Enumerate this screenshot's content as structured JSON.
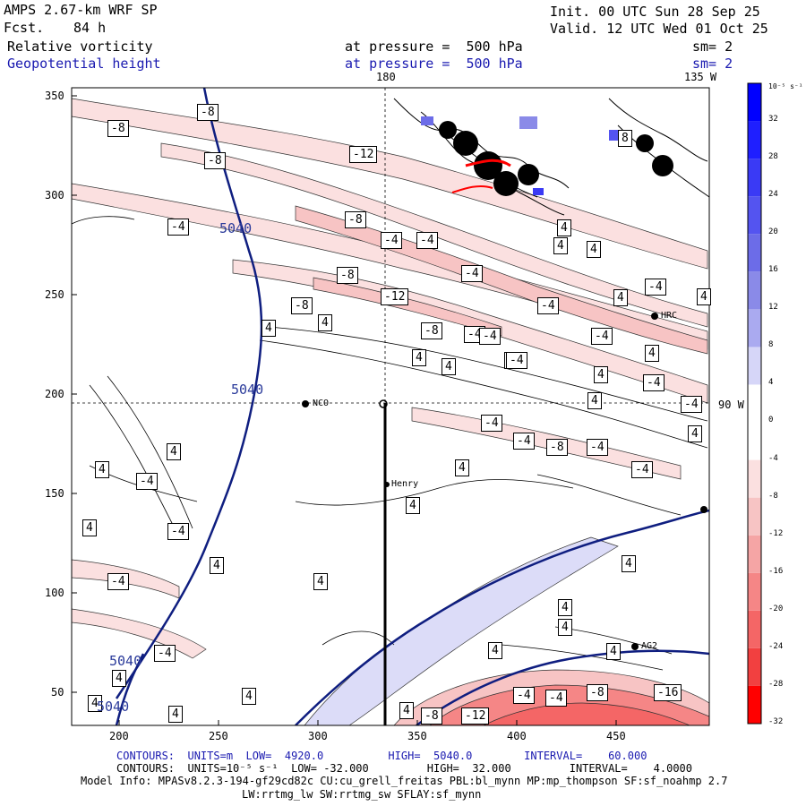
{
  "header": {
    "model": "AMPS 2.67-km WRF SP",
    "fcst_label": "Fcst.",
    "fcst_value": "84 h",
    "init": "Init. 00 UTC Sun 28 Sep 25",
    "valid": "Valid. 12 UTC Wed 01 Oct 25",
    "field1_name": "Relative vorticity",
    "field1_level": "at pressure =  500 hPa",
    "field1_sm": "sm= 2",
    "field2_name": "Geopotential height",
    "field2_level": "at pressure =  500 hPa",
    "field2_sm": "sm= 2"
  },
  "map": {
    "lon_180": "180",
    "lon_135w": "135 W",
    "lat_90w": "90 W",
    "stations": [
      {
        "name": "NCO",
        "marker": "dot"
      },
      {
        "name": "Henry",
        "marker": "dot"
      },
      {
        "name": "HRC",
        "marker": "dot"
      },
      {
        "name": "AG2",
        "marker": "dot"
      }
    ],
    "y_ticks": [
      "350",
      "300",
      "250",
      "200",
      "150",
      "100",
      "50"
    ],
    "x_ticks": [
      "200",
      "250",
      "300",
      "350",
      "400",
      "450"
    ]
  },
  "height_labels": [
    "5040",
    "5040",
    "5040",
    "5040"
  ],
  "vort_labels": [
    "-8",
    "-8",
    "-4",
    "-8",
    "-4",
    "-8",
    "-12",
    "-4",
    "-8",
    "-4",
    "-8",
    "-4",
    "-4",
    "-8",
    "-4",
    "-4",
    "-4",
    "-4",
    "-4",
    "-4",
    "-4",
    "-8",
    "-4",
    "-4",
    "-4",
    "-4",
    "-4",
    "-4",
    "-4",
    "-8",
    "-4",
    "-4",
    "-8",
    "-16",
    "-12",
    "-8",
    "-12",
    "4",
    "4",
    "4",
    "4",
    "4",
    "4",
    "4",
    "4",
    "4",
    "4",
    "4",
    "4",
    "4",
    "4",
    "4",
    "4",
    "4",
    "4",
    "4",
    "4",
    "4",
    "4",
    "4",
    "4",
    "4",
    "4",
    "4",
    "4",
    "4",
    "4",
    "8",
    "8",
    "4"
  ],
  "colorbar": {
    "units": "10⁻⁵ s⁻¹",
    "labels": [
      "32",
      "28",
      "24",
      "20",
      "16",
      "12",
      "8",
      "4",
      "0",
      "-4",
      "-8",
      "-12",
      "-16",
      "-20",
      "-24",
      "-28",
      "-32"
    ],
    "colors": [
      "#0000ff",
      "#1f1fff",
      "#3a3af5",
      "#5454f0",
      "#6c6ce8",
      "#8a8ae8",
      "#aaaaf0",
      "#d6d6f8",
      "#ffffff",
      "#ffffff",
      "#fbe0e0",
      "#f7c4c4",
      "#f5a5a5",
      "#f58686",
      "#f46666",
      "#f24040",
      "#ff0000"
    ]
  },
  "footer": {
    "contours1": "CONTOURS:  UNITS=m  LOW=  4920.0          HIGH=  5040.0        INTERVAL=    60.000",
    "contours2": "CONTOURS:  UNITS=10⁻⁵ s⁻¹  LOW= -32.000         HIGH=  32.000         INTERVAL=    4.0000",
    "model_info": "Model Info: MPASv8.2.3-194-gf29cd82c CU:cu_grell_freitas PBL:bl_mynn MP:mp_thompson SF:sf_noahmp 2.7",
    "model_info2": "LW:rrtmg_lw SW:rrtmg_sw SFLAY:sf_mynn"
  }
}
